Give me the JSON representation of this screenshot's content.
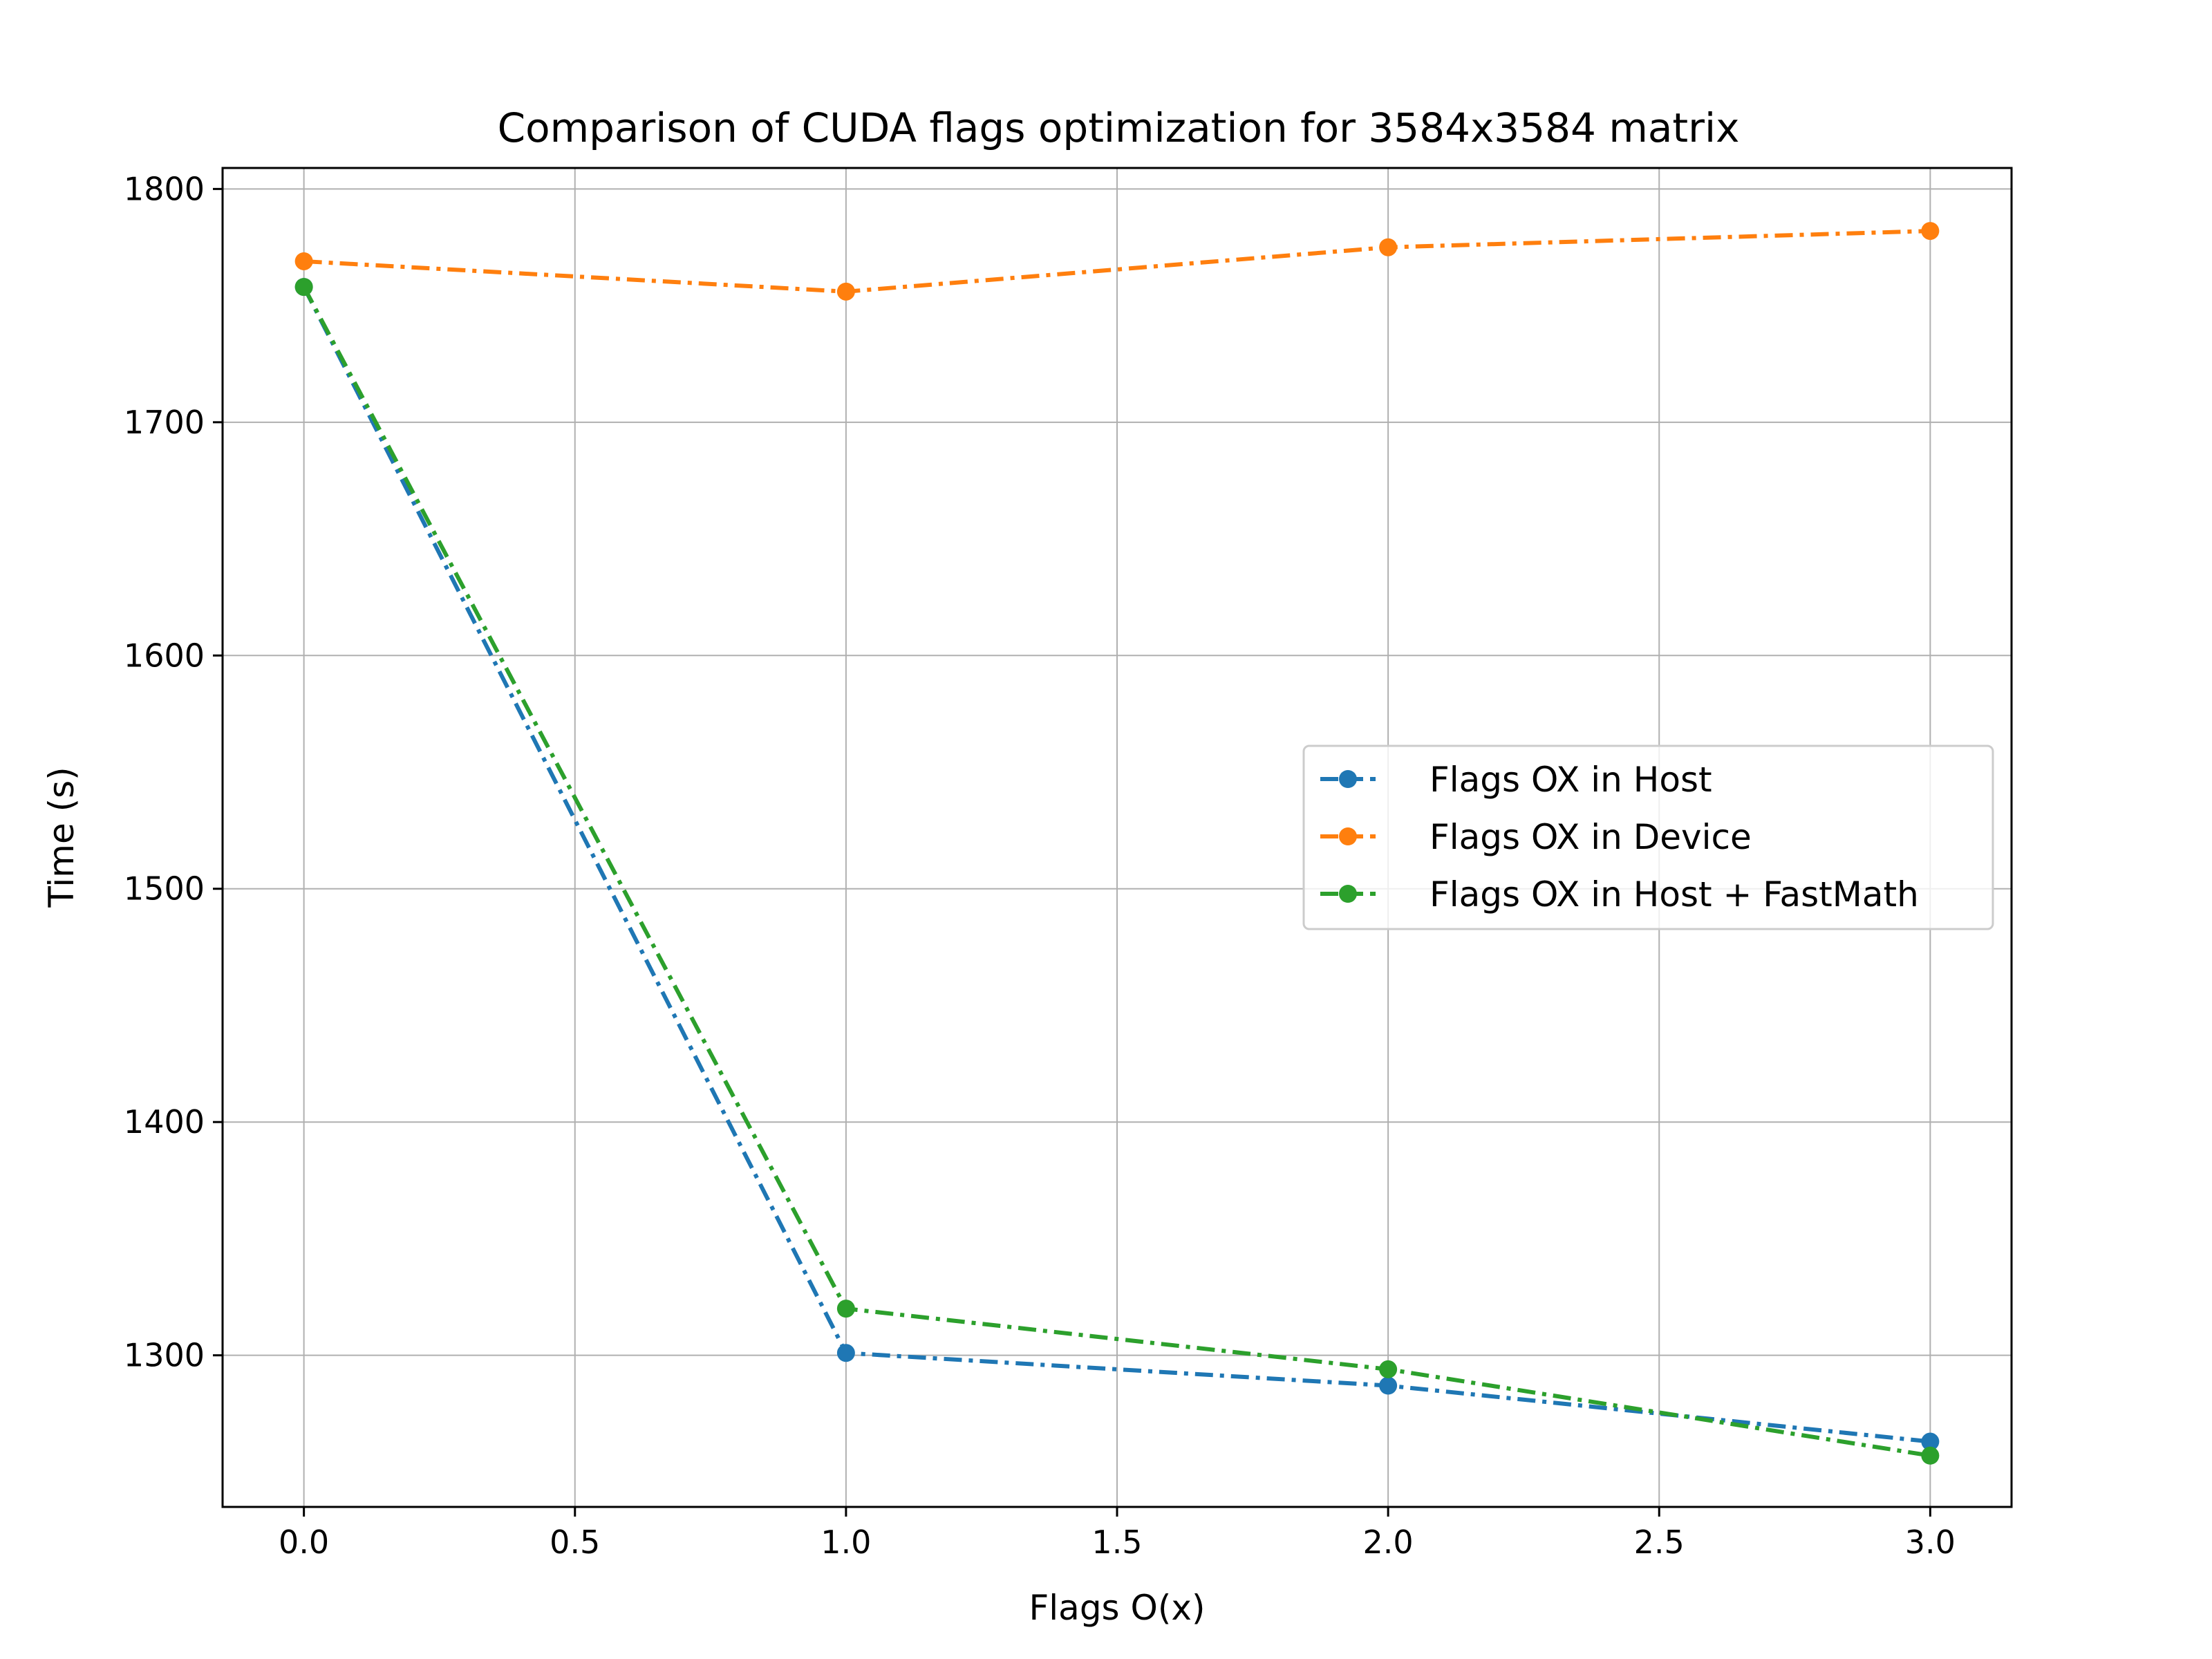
{
  "chart_data": {
    "type": "line",
    "title": "Comparison of CUDA flags optimization for 3584x3584 matrix",
    "xlabel": "Flags O(x)",
    "ylabel": "Time (s)",
    "x": [
      0,
      1,
      2,
      3
    ],
    "xlim": [
      -0.15,
      3.15
    ],
    "ylim": [
      1235,
      1809
    ],
    "xticks": [
      0.0,
      0.5,
      1.0,
      1.5,
      2.0,
      2.5,
      3.0
    ],
    "xtick_labels": [
      "0.0",
      "0.5",
      "1.0",
      "1.5",
      "2.0",
      "2.5",
      "3.0"
    ],
    "yticks": [
      1300,
      1400,
      1500,
      1600,
      1700,
      1800
    ],
    "ytick_labels": [
      "1300",
      "1400",
      "1500",
      "1600",
      "1700",
      "1800"
    ],
    "grid": true,
    "legend_position": "center-right",
    "series": [
      {
        "name": "Flags OX in Host",
        "color": "#1f77b4",
        "values": [
          1758,
          1301,
          1287,
          1263
        ]
      },
      {
        "name": "Flags OX in Device",
        "color": "#ff7f0e",
        "values": [
          1769,
          1756,
          1775,
          1782
        ]
      },
      {
        "name": "Flags OX in Host + FastMath",
        "color": "#2ca02c",
        "values": [
          1758,
          1320,
          1294,
          1257
        ]
      }
    ]
  }
}
